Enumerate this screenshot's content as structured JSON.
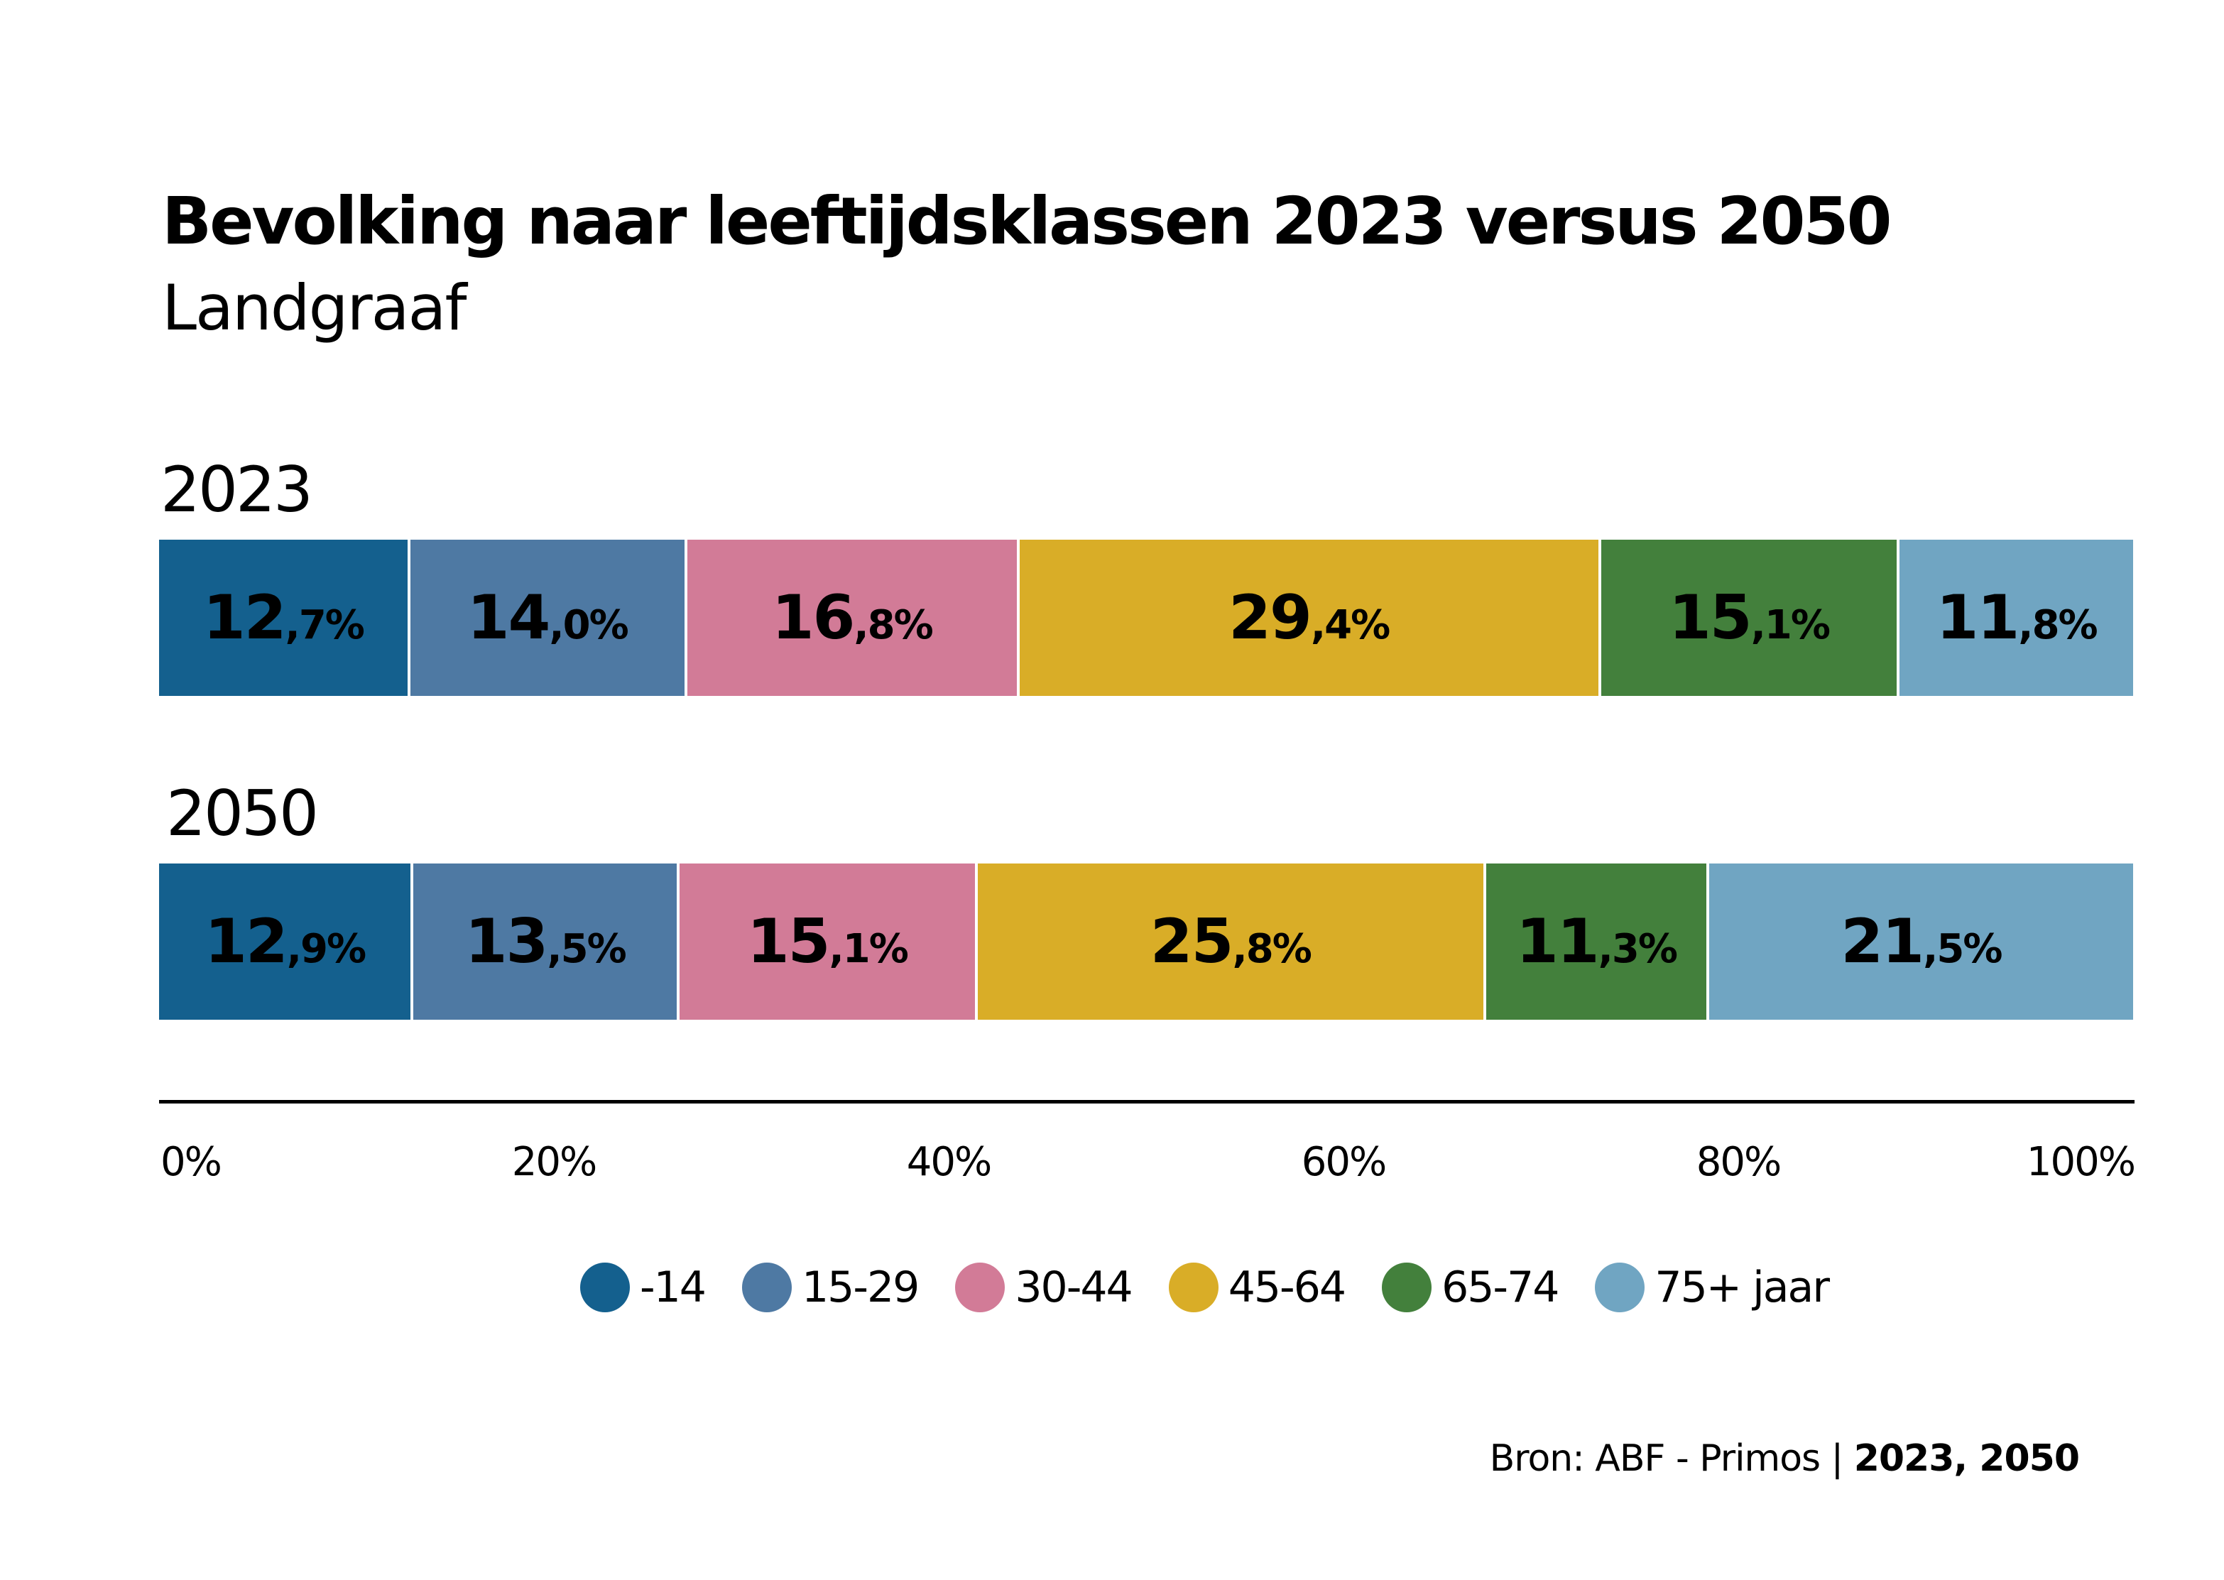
{
  "chart_data": {
    "type": "bar",
    "orientation": "horizontal",
    "stacked": true,
    "normalized": true,
    "title": "Bevolking naar leeftijdsklassen 2023 versus 2050",
    "subtitle": "Landgraaf",
    "categories": [
      "2023",
      "2050"
    ],
    "series": [
      {
        "name": "-14",
        "color": "#14608e",
        "values": [
          12.7,
          12.9
        ],
        "labels": [
          [
            "12",
            ",7%"
          ],
          [
            "12",
            ",9%"
          ]
        ]
      },
      {
        "name": "15-29",
        "color": "#4e79a3",
        "values": [
          14.0,
          13.5
        ],
        "labels": [
          [
            "14",
            ",0%"
          ],
          [
            "13",
            ",5%"
          ]
        ]
      },
      {
        "name": "30-44",
        "color": "#d27b97",
        "values": [
          16.8,
          15.1
        ],
        "labels": [
          [
            "16",
            ",8%"
          ],
          [
            "15",
            ",1%"
          ]
        ]
      },
      {
        "name": "45-64",
        "color": "#d9ad27",
        "values": [
          29.4,
          25.8
        ],
        "labels": [
          [
            "29",
            ",4%"
          ],
          [
            "25",
            ",8%"
          ]
        ]
      },
      {
        "name": "65-74",
        "color": "#43803c",
        "values": [
          15.1,
          11.3
        ],
        "labels": [
          [
            "15",
            ",1%"
          ],
          [
            "11",
            ",3%"
          ]
        ]
      },
      {
        "name": "75+ jaar",
        "color": "#70a5c2",
        "values": [
          11.8,
          21.5
        ],
        "labels": [
          [
            "11",
            ",8%"
          ],
          [
            "21",
            ",5%"
          ]
        ]
      }
    ],
    "xlim": [
      0,
      100
    ],
    "xticks": [
      "0%",
      "20%",
      "40%",
      "60%",
      "80%",
      "100%"
    ],
    "xtick_values": [
      0,
      20,
      40,
      60,
      80,
      100
    ],
    "xlabel": "",
    "ylabel": "",
    "grid": false,
    "legend_position": "bottom-center",
    "source": {
      "text": "Bron: ABF - Primos | ",
      "bold": "2023, 2050"
    }
  }
}
